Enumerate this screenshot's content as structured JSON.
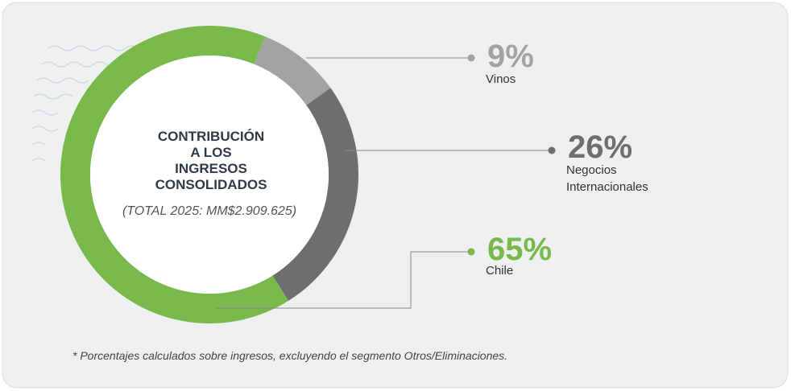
{
  "chart_data": {
    "type": "donut",
    "title": [
      "CONTRIBUCIÓN",
      "A LOS",
      "INGRESOS",
      "CONSOLIDADOS"
    ],
    "subtitle": "(TOTAL 2025: MM$2.909.625)",
    "categories": [
      "Vinos",
      "Negocios Internacionales",
      "Chile"
    ],
    "values": [
      9,
      26,
      65
    ],
    "value_labels": [
      "9%",
      "26%",
      "65%"
    ],
    "colors": [
      "#a3a3a3",
      "#6e6e6e",
      "#79b94b"
    ],
    "footnote": "* Porcentajes calculados sobre ingresos, excluyendo el segmento Otros/Eliminaciones."
  }
}
